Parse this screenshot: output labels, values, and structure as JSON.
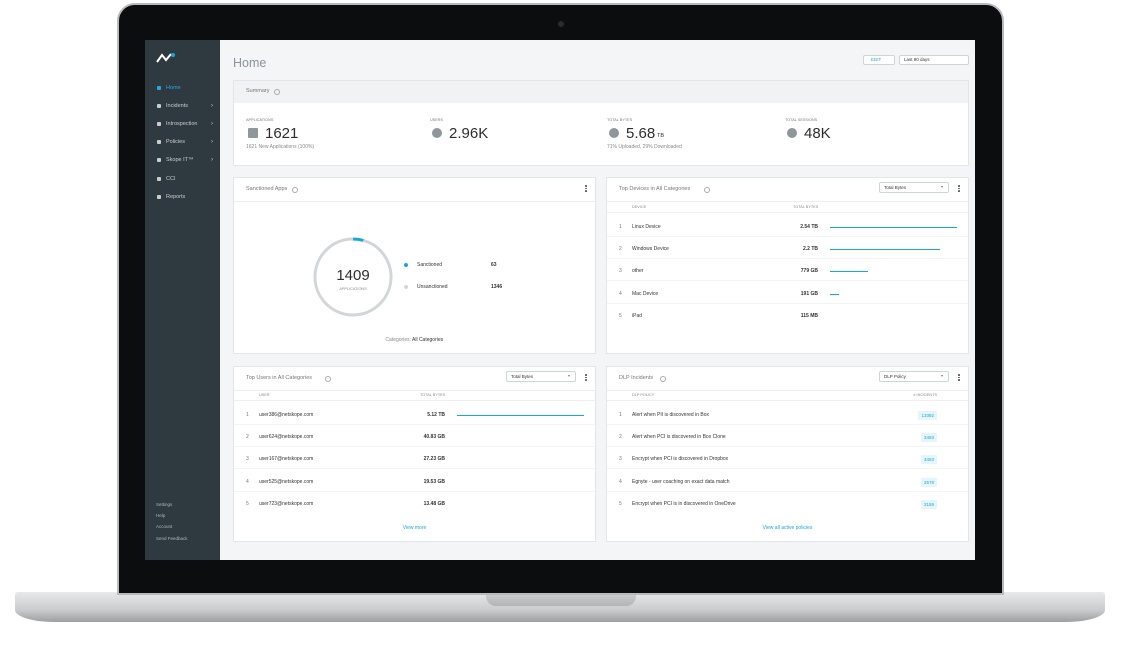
{
  "sidebar": {
    "items": [
      "Home",
      "Incidents",
      "Introspection",
      "Policies",
      "Skope IT™",
      "CCI",
      "Reports"
    ],
    "footer": [
      "Settings",
      "Help",
      "Account",
      "Send Feedback"
    ]
  },
  "header": {
    "title": "Home",
    "edit": "EDIT",
    "range": "Last 90 days"
  },
  "summary": {
    "title": "Summary",
    "stats": [
      {
        "label": "APPLICATIONS",
        "value": "1621",
        "sub": "1621 New Applications (100%)"
      },
      {
        "label": "USERS",
        "value": "2.96K"
      },
      {
        "label": "TOTAL BYTES",
        "value": "5.68",
        "unit": "TB",
        "sub": "71% Uploaded, 29% Downloaded"
      },
      {
        "label": "TOTAL SESSIONS",
        "value": "48K"
      }
    ]
  },
  "sanctioned": {
    "title": "Sanctioned Apps",
    "total": 1409,
    "total_label": "APPLICATIONS",
    "legend": [
      {
        "name": "Sanctioned",
        "value": 63,
        "color": "#1aa6d8"
      },
      {
        "name": "Unsanctioned",
        "value": 1346,
        "color": "#d3d6d8"
      }
    ],
    "categories_label": "Categories:",
    "categories_value": "All Categories"
  },
  "devices": {
    "title": "Top Devices in All Categories",
    "dropdown": "Total Bytes",
    "columns": [
      "DEVICE",
      "TOTAL BYTES"
    ],
    "rows": [
      [
        "1",
        "Linux Device",
        "2.54 TB"
      ],
      [
        "2",
        "Windows Device",
        "2.2 TB"
      ],
      [
        "3",
        "other",
        "779 GB"
      ],
      [
        "4",
        "Mac Device",
        "191 GB"
      ],
      [
        "5",
        "iPad",
        "115 MB"
      ]
    ]
  },
  "users": {
    "title": "Top Users in All Categories",
    "dropdown": "Total Bytes",
    "columns": [
      "USER",
      "TOTAL BYTES"
    ],
    "rows": [
      [
        "1",
        "user386@netskope.com",
        "5.12 TB"
      ],
      [
        "2",
        "user624@netskope.com",
        "40.83 GB"
      ],
      [
        "3",
        "user167@netskope.com",
        "27.23 GB"
      ],
      [
        "4",
        "user525@netskope.com",
        "19.53 GB"
      ],
      [
        "5",
        "user723@netskope.com",
        "13.48 GB"
      ]
    ],
    "link": "View more"
  },
  "dlp": {
    "title": "DLP Incidents",
    "dropdown": "DLP Policy",
    "columns": [
      "DLP POLICY",
      "# INCIDENTS"
    ],
    "rows": [
      [
        "1",
        "Alert when PII is discovered in Box",
        "13392"
      ],
      [
        "2",
        "Alert when PCI is discovered in Box Clone",
        "3493"
      ],
      [
        "3",
        "Encrypt when PCI is discovered in Dropbox",
        "3493"
      ],
      [
        "4",
        "Egnyte - user coaching on exact data match",
        "2578"
      ],
      [
        "5",
        "Encrypt when PCI is in discovered in OneDrive",
        "2159"
      ]
    ],
    "link": "View all active policies"
  }
}
